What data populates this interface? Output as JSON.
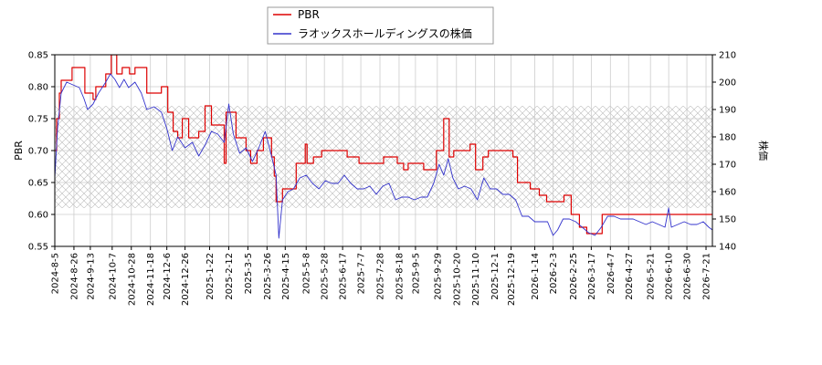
{
  "chart_data": {
    "type": "line",
    "title": "",
    "legend": {
      "placement": "top-center",
      "entries": [
        {
          "name": "PBR",
          "color": "#dd0000"
        },
        {
          "name": "ラオックスホールディングスの株価",
          "color": "#3333cc"
        }
      ]
    },
    "y_left": {
      "label": "PBR",
      "range": [
        0.55,
        0.85
      ],
      "ticks": [
        "0.55",
        "0.60",
        "0.65",
        "0.70",
        "0.75",
        "0.80",
        "0.85"
      ]
    },
    "y_right": {
      "label": "株価",
      "range": [
        140,
        210
      ],
      "ticks": [
        "140",
        "150",
        "160",
        "170",
        "180",
        "190",
        "200",
        "210"
      ]
    },
    "x_axis": {
      "range": [
        "2024-08-05",
        "2026-07-28"
      ],
      "ticks": [
        "2024-8-5",
        "2024-8-26",
        "2024-9-13",
        "2024-10-7",
        "2024-10-28",
        "2024-11-18",
        "2024-12-6",
        "2024-12-26",
        "2025-1-22",
        "2025-2-12",
        "2025-3-5",
        "2025-3-26",
        "2025-4-15",
        "2025-5-8",
        "2025-5-28",
        "2025-6-17",
        "2025-7-7",
        "2025-7-28",
        "2025-8-18",
        "2025-9-5",
        "2025-9-29",
        "2025-10-20",
        "2025-11-10",
        "2025-12-1",
        "2025-12-19",
        "2026-1-14",
        "2026-2-3",
        "2026-2-25",
        "2026-3-17",
        "2026-4-7",
        "2026-4-27",
        "2026-5-21",
        "2026-6-10",
        "2026-6-30",
        "2026-7-21"
      ]
    },
    "hatch_band": {
      "pbr_range": [
        0.61,
        0.77
      ]
    },
    "grid": true,
    "colors": {
      "pbr": "#dd0000",
      "price": "#3333cc",
      "grid": "#cccccc",
      "hatch": "#bbbbbb"
    },
    "series": [
      {
        "name": "PBR",
        "axis": "left",
        "points": [
          [
            "2024-08-05",
            0.7
          ],
          [
            "2024-08-07",
            0.75
          ],
          [
            "2024-08-10",
            0.79
          ],
          [
            "2024-08-12",
            0.81
          ],
          [
            "2024-08-22",
            0.81
          ],
          [
            "2024-08-24",
            0.83
          ],
          [
            "2024-09-05",
            0.83
          ],
          [
            "2024-09-07",
            0.79
          ],
          [
            "2024-09-14",
            0.79
          ],
          [
            "2024-09-16",
            0.78
          ],
          [
            "2024-09-19",
            0.8
          ],
          [
            "2024-09-28",
            0.8
          ],
          [
            "2024-09-30",
            0.82
          ],
          [
            "2024-10-04",
            0.82
          ],
          [
            "2024-10-06",
            0.85
          ],
          [
            "2024-10-10",
            0.85
          ],
          [
            "2024-10-12",
            0.82
          ],
          [
            "2024-10-16",
            0.82
          ],
          [
            "2024-10-18",
            0.83
          ],
          [
            "2024-10-24",
            0.83
          ],
          [
            "2024-10-26",
            0.82
          ],
          [
            "2024-10-30",
            0.82
          ],
          [
            "2024-11-01",
            0.83
          ],
          [
            "2024-11-12",
            0.83
          ],
          [
            "2024-11-14",
            0.79
          ],
          [
            "2024-11-28",
            0.79
          ],
          [
            "2024-11-30",
            0.8
          ],
          [
            "2024-12-05",
            0.8
          ],
          [
            "2024-12-07",
            0.76
          ],
          [
            "2024-12-11",
            0.76
          ],
          [
            "2024-12-13",
            0.73
          ],
          [
            "2024-12-16",
            0.73
          ],
          [
            "2024-12-18",
            0.72
          ],
          [
            "2024-12-21",
            0.72
          ],
          [
            "2024-12-23",
            0.75
          ],
          [
            "2024-12-28",
            0.75
          ],
          [
            "2024-12-30",
            0.72
          ],
          [
            "2025-01-08",
            0.72
          ],
          [
            "2025-01-10",
            0.73
          ],
          [
            "2025-01-15",
            0.73
          ],
          [
            "2025-01-17",
            0.77
          ],
          [
            "2025-01-22",
            0.77
          ],
          [
            "2025-01-24",
            0.74
          ],
          [
            "2025-02-05",
            0.74
          ],
          [
            "2025-02-07",
            0.68
          ],
          [
            "2025-02-09",
            0.76
          ],
          [
            "2025-02-18",
            0.76
          ],
          [
            "2025-02-20",
            0.72
          ],
          [
            "2025-03-01",
            0.72
          ],
          [
            "2025-03-03",
            0.7
          ],
          [
            "2025-03-06",
            0.7
          ],
          [
            "2025-03-08",
            0.68
          ],
          [
            "2025-03-13",
            0.68
          ],
          [
            "2025-03-15",
            0.7
          ],
          [
            "2025-03-20",
            0.7
          ],
          [
            "2025-03-22",
            0.72
          ],
          [
            "2025-03-29",
            0.72
          ],
          [
            "2025-03-31",
            0.69
          ],
          [
            "2025-04-03",
            0.66
          ],
          [
            "2025-04-05",
            0.62
          ],
          [
            "2025-04-10",
            0.62
          ],
          [
            "2025-04-12",
            0.64
          ],
          [
            "2025-04-25",
            0.64
          ],
          [
            "2025-04-27",
            0.68
          ],
          [
            "2025-05-05",
            0.68
          ],
          [
            "2025-05-07",
            0.71
          ],
          [
            "2025-05-09",
            0.68
          ],
          [
            "2025-05-14",
            0.68
          ],
          [
            "2025-05-16",
            0.69
          ],
          [
            "2025-05-23",
            0.69
          ],
          [
            "2025-05-25",
            0.7
          ],
          [
            "2025-06-20",
            0.7
          ],
          [
            "2025-06-22",
            0.69
          ],
          [
            "2025-07-03",
            0.69
          ],
          [
            "2025-07-05",
            0.68
          ],
          [
            "2025-07-30",
            0.68
          ],
          [
            "2025-08-01",
            0.69
          ],
          [
            "2025-08-14",
            0.69
          ],
          [
            "2025-08-16",
            0.68
          ],
          [
            "2025-08-21",
            0.68
          ],
          [
            "2025-08-23",
            0.67
          ],
          [
            "2025-08-26",
            0.67
          ],
          [
            "2025-08-28",
            0.68
          ],
          [
            "2025-09-12",
            0.68
          ],
          [
            "2025-09-14",
            0.67
          ],
          [
            "2025-09-26",
            0.67
          ],
          [
            "2025-09-28",
            0.7
          ],
          [
            "2025-10-04",
            0.7
          ],
          [
            "2025-10-06",
            0.75
          ],
          [
            "2025-10-10",
            0.75
          ],
          [
            "2025-10-12",
            0.69
          ],
          [
            "2025-10-15",
            0.69
          ],
          [
            "2025-10-17",
            0.7
          ],
          [
            "2025-11-02",
            0.7
          ],
          [
            "2025-11-04",
            0.71
          ],
          [
            "2025-11-08",
            0.71
          ],
          [
            "2025-11-10",
            0.67
          ],
          [
            "2025-11-16",
            0.67
          ],
          [
            "2025-11-18",
            0.69
          ],
          [
            "2025-11-22",
            0.69
          ],
          [
            "2025-11-24",
            0.7
          ],
          [
            "2025-12-19",
            0.7
          ],
          [
            "2025-12-21",
            0.69
          ],
          [
            "2025-12-24",
            0.69
          ],
          [
            "2025-12-26",
            0.65
          ],
          [
            "2026-01-07",
            0.65
          ],
          [
            "2026-01-09",
            0.64
          ],
          [
            "2026-01-17",
            0.64
          ],
          [
            "2026-01-19",
            0.63
          ],
          [
            "2026-01-25",
            0.63
          ],
          [
            "2026-01-27",
            0.62
          ],
          [
            "2026-02-13",
            0.62
          ],
          [
            "2026-02-15",
            0.63
          ],
          [
            "2026-02-21",
            0.63
          ],
          [
            "2026-02-23",
            0.6
          ],
          [
            "2026-03-02",
            0.6
          ],
          [
            "2026-03-04",
            0.58
          ],
          [
            "2026-03-10",
            0.58
          ],
          [
            "2026-03-12",
            0.57
          ],
          [
            "2026-03-27",
            0.57
          ],
          [
            "2026-03-29",
            0.6
          ],
          [
            "2026-07-28",
            0.6
          ]
        ]
      },
      {
        "name": "ラオックスホールディングスの株価",
        "axis": "right",
        "points": [
          [
            "2024-08-05",
            165
          ],
          [
            "2024-08-08",
            183
          ],
          [
            "2024-08-12",
            196
          ],
          [
            "2024-08-18",
            200
          ],
          [
            "2024-08-25",
            199
          ],
          [
            "2024-09-01",
            198
          ],
          [
            "2024-09-06",
            194
          ],
          [
            "2024-09-10",
            190
          ],
          [
            "2024-09-16",
            192
          ],
          [
            "2024-09-22",
            196
          ],
          [
            "2024-09-30",
            200
          ],
          [
            "2024-10-05",
            203
          ],
          [
            "2024-10-10",
            201
          ],
          [
            "2024-10-15",
            198
          ],
          [
            "2024-10-20",
            201
          ],
          [
            "2024-10-25",
            198
          ],
          [
            "2024-11-01",
            200
          ],
          [
            "2024-11-08",
            196
          ],
          [
            "2024-11-14",
            190
          ],
          [
            "2024-11-22",
            191
          ],
          [
            "2024-11-30",
            189
          ],
          [
            "2024-12-06",
            183
          ],
          [
            "2024-12-12",
            175
          ],
          [
            "2024-12-18",
            180
          ],
          [
            "2024-12-26",
            176
          ],
          [
            "2025-01-03",
            178
          ],
          [
            "2025-01-10",
            173
          ],
          [
            "2025-01-17",
            177
          ],
          [
            "2025-01-24",
            182
          ],
          [
            "2025-01-31",
            181
          ],
          [
            "2025-02-07",
            178
          ],
          [
            "2025-02-12",
            192
          ],
          [
            "2025-02-17",
            181
          ],
          [
            "2025-02-24",
            174
          ],
          [
            "2025-03-03",
            176
          ],
          [
            "2025-03-10",
            171
          ],
          [
            "2025-03-17",
            176
          ],
          [
            "2025-03-24",
            182
          ],
          [
            "2025-03-31",
            173
          ],
          [
            "2025-04-05",
            166
          ],
          [
            "2025-04-08",
            143
          ],
          [
            "2025-04-12",
            157
          ],
          [
            "2025-04-18",
            160
          ],
          [
            "2025-04-24",
            161
          ],
          [
            "2025-05-01",
            165
          ],
          [
            "2025-05-08",
            166
          ],
          [
            "2025-05-15",
            163
          ],
          [
            "2025-05-22",
            161
          ],
          [
            "2025-05-29",
            164
          ],
          [
            "2025-06-05",
            163
          ],
          [
            "2025-06-12",
            163
          ],
          [
            "2025-06-19",
            166
          ],
          [
            "2025-06-26",
            163
          ],
          [
            "2025-07-03",
            161
          ],
          [
            "2025-07-10",
            161
          ],
          [
            "2025-07-17",
            162
          ],
          [
            "2025-07-24",
            159
          ],
          [
            "2025-07-31",
            162
          ],
          [
            "2025-08-07",
            163
          ],
          [
            "2025-08-14",
            157
          ],
          [
            "2025-08-21",
            158
          ],
          [
            "2025-08-28",
            158
          ],
          [
            "2025-09-04",
            157
          ],
          [
            "2025-09-11",
            158
          ],
          [
            "2025-09-18",
            158
          ],
          [
            "2025-09-25",
            163
          ],
          [
            "2025-10-01",
            170
          ],
          [
            "2025-10-06",
            166
          ],
          [
            "2025-10-11",
            172
          ],
          [
            "2025-10-16",
            165
          ],
          [
            "2025-10-22",
            161
          ],
          [
            "2025-10-29",
            162
          ],
          [
            "2025-11-05",
            161
          ],
          [
            "2025-11-12",
            157
          ],
          [
            "2025-11-19",
            165
          ],
          [
            "2025-11-26",
            161
          ],
          [
            "2025-12-03",
            161
          ],
          [
            "2025-12-10",
            159
          ],
          [
            "2025-12-17",
            159
          ],
          [
            "2025-12-24",
            157
          ],
          [
            "2025-12-31",
            151
          ],
          [
            "2026-01-07",
            151
          ],
          [
            "2026-01-14",
            149
          ],
          [
            "2026-01-21",
            149
          ],
          [
            "2026-01-28",
            149
          ],
          [
            "2026-02-03",
            144
          ],
          [
            "2026-02-08",
            146
          ],
          [
            "2026-02-14",
            150
          ],
          [
            "2026-02-21",
            150
          ],
          [
            "2026-02-28",
            149
          ],
          [
            "2026-03-07",
            147
          ],
          [
            "2026-03-14",
            145
          ],
          [
            "2026-03-21",
            144
          ],
          [
            "2026-03-28",
            147
          ],
          [
            "2026-04-04",
            151
          ],
          [
            "2026-04-11",
            151
          ],
          [
            "2026-04-18",
            150
          ],
          [
            "2026-04-25",
            150
          ],
          [
            "2026-05-02",
            150
          ],
          [
            "2026-05-09",
            149
          ],
          [
            "2026-05-16",
            148
          ],
          [
            "2026-05-23",
            149
          ],
          [
            "2026-05-30",
            148
          ],
          [
            "2026-06-06",
            147
          ],
          [
            "2026-06-10",
            154
          ],
          [
            "2026-06-13",
            147
          ],
          [
            "2026-06-20",
            148
          ],
          [
            "2026-06-27",
            149
          ],
          [
            "2026-07-04",
            148
          ],
          [
            "2026-07-11",
            148
          ],
          [
            "2026-07-18",
            149
          ],
          [
            "2026-07-24",
            147
          ],
          [
            "2026-07-28",
            146
          ]
        ]
      }
    ]
  }
}
